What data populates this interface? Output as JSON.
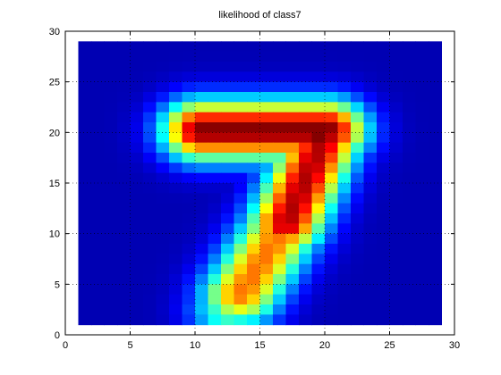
{
  "chart_data": {
    "type": "heatmap",
    "title": "likelihood of class7",
    "xlabel": "",
    "ylabel": "",
    "xlim": [
      0,
      30
    ],
    "ylim": [
      0,
      30
    ],
    "xticks": [
      0,
      5,
      10,
      15,
      20,
      25,
      30
    ],
    "yticks": [
      0,
      5,
      10,
      15,
      20,
      25,
      30
    ],
    "grid": true,
    "colormap": "jet",
    "value_range": [
      0,
      1
    ],
    "cell_x_range": [
      1,
      28
    ],
    "cell_y_range": [
      1,
      28
    ],
    "description_of_values": "28x28 likelihood map resembling digit 7; rows listed from y=28 (top) to y=1 (bottom), columns x=1..28"
  }
}
